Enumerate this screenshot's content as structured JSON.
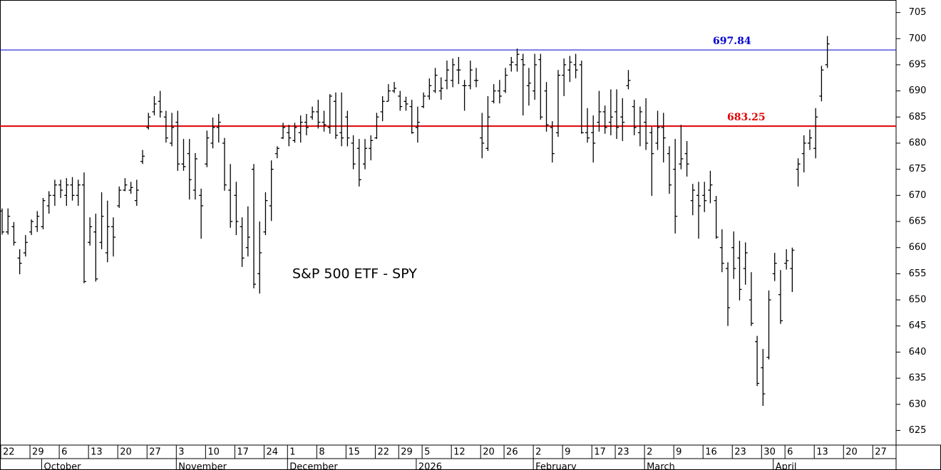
{
  "chart_data": {
    "type": "ohlc",
    "title": "S&P 500 ETF - SPY",
    "categories": [
      "22",
      null,
      null,
      null,
      null,
      "29",
      null,
      null,
      null,
      null,
      "6",
      null,
      null,
      null,
      null,
      "13",
      null,
      null,
      null,
      null,
      "20",
      null,
      null,
      null,
      null,
      "27",
      null,
      null,
      null,
      null,
      "3",
      null,
      null,
      null,
      null,
      "10",
      null,
      null,
      null,
      null,
      "17",
      null,
      null,
      null,
      null,
      "24",
      null,
      null,
      null,
      "1",
      null,
      null,
      null,
      null,
      "8",
      null,
      null,
      null,
      null,
      "15",
      null,
      null,
      null,
      null,
      "22",
      null,
      null,
      null,
      "29",
      null,
      null,
      null,
      "5",
      null,
      null,
      null,
      null,
      "12",
      null,
      null,
      null,
      null,
      "20",
      null,
      null,
      null,
      "26",
      null,
      null,
      null,
      null,
      "2",
      null,
      null,
      null,
      null,
      "9",
      null,
      null,
      null,
      null,
      "17",
      null,
      null,
      null,
      "23",
      null,
      null,
      null,
      null,
      "2",
      null,
      null,
      null,
      null,
      "9",
      null,
      null,
      null,
      null,
      "16",
      null,
      null,
      null,
      null,
      "23",
      null,
      null,
      null,
      null,
      "30",
      null,
      null,
      null,
      "6",
      null,
      null,
      null,
      null,
      "13",
      null,
      null,
      null,
      null,
      "20",
      null,
      null,
      null,
      null,
      "27",
      null,
      null,
      null
    ],
    "months": [
      "October",
      "November",
      "December",
      "2026",
      "February",
      "March",
      "April"
    ],
    "open": [
      667,
      663,
      664,
      658,
      659,
      663,
      664,
      664,
      668,
      670,
      672,
      670,
      672,
      670,
      672,
      661,
      663,
      661,
      659,
      664,
      668,
      671,
      671,
      669,
      676.5,
      683,
      686,
      688,
      685,
      680,
      684,
      676,
      678,
      671,
      670,
      676,
      680,
      683,
      680,
      671,
      670,
      664,
      660,
      675,
      655,
      663,
      668,
      678,
      681,
      682,
      680.5,
      682,
      684,
      685,
      686,
      684,
      683,
      688,
      682,
      685,
      680,
      679,
      676,
      679,
      681,
      686,
      688,
      690,
      689,
      688,
      687,
      683,
      687,
      689,
      690,
      690,
      692,
      692,
      694,
      691,
      691,
      692,
      681,
      679,
      688,
      690,
      690,
      695,
      695,
      696,
      691,
      690,
      696,
      690,
      683,
      682,
      693,
      694,
      695,
      695,
      682,
      682,
      684,
      686,
      684,
      686,
      685,
      691,
      687,
      682,
      684,
      682,
      680,
      683,
      678,
      675,
      676,
      678,
      669,
      670,
      670,
      671,
      669,
      660,
      656,
      660,
      658,
      656,
      650,
      642,
      637,
      639,
      655,
      651,
      657,
      656,
      675,
      678,
      680,
      679,
      689,
      695,
      null,
      null,
      null,
      null,
      null,
      null,
      null,
      null,
      null,
      null,
      null
    ],
    "high": [
      667.5,
      667.5,
      664.9,
      659.7,
      662.4,
      665.4,
      667,
      669.5,
      670.8,
      673,
      673,
      673.3,
      673.5,
      673,
      674.4,
      665.8,
      666.5,
      670.6,
      669,
      665.8,
      671.7,
      673.3,
      672.6,
      673,
      678.7,
      685.8,
      689,
      690,
      686.2,
      685.8,
      686.2,
      680.8,
      680.8,
      678.1,
      671.3,
      682.4,
      684.9,
      685.6,
      681,
      676,
      672.6,
      665.8,
      667.9,
      676,
      665,
      670.6,
      676.7,
      679.4,
      683.9,
      683.5,
      683.9,
      685.3,
      685.6,
      687,
      688.3,
      686.2,
      689.4,
      689.7,
      689.7,
      686.2,
      681.5,
      680.8,
      680.8,
      681.5,
      685.8,
      689,
      691.3,
      691.7,
      690,
      688.9,
      688.3,
      687,
      689.7,
      692.4,
      694.4,
      692.6,
      695.8,
      696.2,
      696.5,
      692.1,
      695.8,
      694.4,
      685.8,
      689,
      691.3,
      692.1,
      694.4,
      696.5,
      698.1,
      697.1,
      694.4,
      697.1,
      697.1,
      691.7,
      684.2,
      694,
      696.2,
      696.7,
      697.1,
      695.8,
      686.7,
      685.3,
      690,
      687.2,
      690.3,
      690.3,
      688.6,
      694,
      688.3,
      687,
      688.6,
      683.1,
      686.2,
      685.8,
      679.4,
      680.8,
      683.5,
      680.4,
      672.2,
      672.6,
      672.6,
      674.7,
      669.9,
      663.5,
      657.2,
      663.1,
      661.3,
      661,
      655.3,
      643.1,
      640.6,
      651.8,
      659,
      655.7,
      659.7,
      660,
      677.1,
      681.5,
      682.6,
      686.7,
      694.8,
      700.5,
      null,
      null,
      null,
      null,
      null,
      null,
      null,
      null,
      null,
      null,
      null
    ],
    "low": [
      662.5,
      662.5,
      660.4,
      654.9,
      658.3,
      662.4,
      663,
      663.5,
      666.5,
      668,
      669.5,
      668,
      669,
      668,
      653.2,
      660.4,
      653.5,
      659.7,
      657.2,
      658.3,
      667.6,
      670.8,
      670.3,
      668,
      676,
      682.6,
      685.3,
      684.9,
      680.1,
      679.4,
      674.7,
      674.7,
      669.2,
      669.2,
      661.7,
      675.4,
      679,
      680.1,
      670.9,
      663.8,
      662.4,
      656.3,
      658.3,
      652.2,
      651.2,
      662.4,
      665.1,
      677.1,
      680.8,
      679.4,
      680.1,
      680.1,
      681.5,
      684.5,
      682.8,
      682.2,
      681.8,
      680.8,
      679.4,
      679.4,
      675,
      671.7,
      675,
      676.7,
      680.8,
      684.2,
      688,
      689.6,
      686.2,
      686.2,
      681.8,
      680.1,
      686.7,
      688.3,
      689.6,
      688.3,
      690.3,
      690.7,
      691.3,
      686.2,
      690.3,
      690.7,
      677.1,
      678.5,
      687.6,
      687.6,
      689.6,
      693.7,
      693.7,
      685.3,
      687.2,
      688.3,
      684.5,
      682.2,
      676.3,
      681.2,
      689,
      691.7,
      692.4,
      681.8,
      680.1,
      676.3,
      682.2,
      681.8,
      681.5,
      680.8,
      680.4,
      690.3,
      681.5,
      679.4,
      678.7,
      669.9,
      678.7,
      676.3,
      670.3,
      662.7,
      675,
      673.6,
      666.2,
      661.7,
      666.8,
      668.5,
      661.7,
      655.3,
      645,
      654,
      649.9,
      652.9,
      645,
      633.5,
      629.7,
      638.6,
      653.6,
      645.4,
      655.8,
      651.5,
      671.7,
      674.4,
      678.7,
      677.1,
      688,
      694.4,
      null,
      null,
      null,
      null,
      null,
      null,
      null,
      null,
      null,
      null,
      null
    ],
    "close": [
      663,
      666,
      661,
      657,
      661,
      665,
      666,
      669,
      670,
      672,
      671,
      672,
      670,
      672,
      653.5,
      664,
      654,
      666,
      664,
      662,
      671,
      672,
      671.5,
      671,
      677.5,
      685,
      687.5,
      686,
      681,
      683,
      676,
      675.5,
      673,
      677,
      668,
      681,
      683,
      684,
      672,
      665,
      665,
      658,
      662,
      653,
      659,
      669,
      675,
      679,
      683,
      681,
      683,
      684,
      683,
      686,
      684,
      683.5,
      689,
      681.5,
      681,
      681,
      676,
      673,
      679,
      680.5,
      685,
      688,
      690,
      690.5,
      687,
      687.5,
      682,
      684,
      689,
      691,
      693,
      690.5,
      694,
      695,
      694,
      691,
      694,
      692,
      680,
      685,
      690,
      689,
      693,
      695.5,
      697,
      695,
      691.5,
      695,
      685,
      683.5,
      678,
      693,
      695,
      695.5,
      694,
      682,
      681,
      680,
      686,
      683,
      685,
      683,
      684,
      692,
      683,
      686,
      680,
      678,
      683,
      681,
      672,
      666,
      677,
      676,
      671,
      668,
      669,
      672,
      662,
      657,
      648.5,
      656,
      652,
      659,
      645.5,
      634,
      632,
      650,
      657,
      646,
      657.5,
      659.5,
      676,
      680,
      681,
      685,
      694,
      699,
      null,
      null,
      null,
      null,
      null,
      null,
      null,
      null,
      null,
      null,
      null
    ],
    "color": "#000000",
    "ylim": [
      622.2,
      707.4
    ],
    "yticks": [
      625,
      630,
      635,
      640,
      645,
      650,
      655,
      660,
      665,
      670,
      675,
      680,
      685,
      690,
      695,
      700,
      705
    ],
    "lines": [
      {
        "value": 697.84,
        "color": "#0000cc"
      },
      {
        "value": 683.25,
        "color": "#e00000"
      }
    ]
  }
}
